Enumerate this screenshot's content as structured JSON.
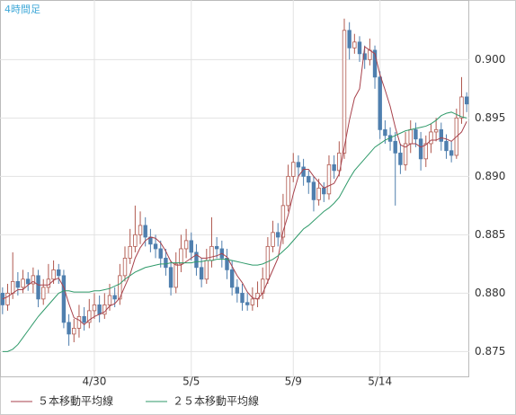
{
  "chart_data": {
    "type": "candlestick",
    "title": "4時間足",
    "categories": [
      null,
      null,
      null,
      null,
      null,
      null,
      null,
      null,
      null,
      null,
      null,
      null,
      null,
      null,
      null,
      null,
      null,
      null,
      "4/30",
      null,
      null,
      null,
      null,
      null,
      null,
      null,
      null,
      null,
      null,
      null,
      null,
      null,
      null,
      null,
      null,
      null,
      null,
      "5/5",
      null,
      null,
      null,
      null,
      null,
      null,
      null,
      null,
      null,
      null,
      null,
      null,
      null,
      null,
      null,
      null,
      null,
      null,
      null,
      "5/9",
      null,
      null,
      null,
      null,
      null,
      null,
      null,
      null,
      null,
      null,
      null,
      null,
      null,
      null,
      null,
      null,
      "5/14",
      null,
      null,
      null,
      null,
      null,
      null,
      null,
      null,
      null,
      null,
      null,
      null,
      null,
      null,
      null,
      null,
      null
    ],
    "open": [
      0.88,
      0.879,
      0.88,
      0.881,
      0.8805,
      0.8812,
      0.8808,
      0.8815,
      0.8795,
      0.8805,
      0.8812,
      0.882,
      0.8815,
      0.8775,
      0.8765,
      0.877,
      0.878,
      0.8775,
      0.8785,
      0.879,
      0.8782,
      0.879,
      0.8798,
      0.8795,
      0.8815,
      0.883,
      0.884,
      0.885,
      0.8858,
      0.8848,
      0.8842,
      0.8838,
      0.883,
      0.8822,
      0.8805,
      0.8825,
      0.8838,
      0.8845,
      0.8835,
      0.8822,
      0.8812,
      0.8828,
      0.884,
      0.8838,
      0.883,
      0.882,
      0.8805,
      0.88,
      0.8792,
      0.879,
      0.8795,
      0.88,
      0.8812,
      0.884,
      0.8852,
      0.8848,
      0.8875,
      0.89,
      0.8912,
      0.8908,
      0.89,
      0.8895,
      0.888,
      0.889,
      0.8885,
      0.891,
      0.8905,
      0.892,
      0.9025,
      0.901,
      0.9015,
      0.9005,
      0.9,
      0.9008,
      0.8985,
      0.894,
      0.8935,
      0.893,
      0.892,
      0.891,
      0.8928,
      0.894,
      0.8932,
      0.8915,
      0.8928,
      0.8938,
      0.894,
      0.893,
      0.8922,
      0.8918,
      0.895,
      0.8968
    ],
    "high": [
      0.8805,
      0.8808,
      0.8835,
      0.8818,
      0.882,
      0.8818,
      0.8822,
      0.882,
      0.8812,
      0.8825,
      0.8828,
      0.8825,
      0.882,
      0.8782,
      0.8778,
      0.879,
      0.8788,
      0.8795,
      0.88,
      0.8798,
      0.88,
      0.8808,
      0.8805,
      0.8825,
      0.884,
      0.8855,
      0.8875,
      0.887,
      0.8865,
      0.8855,
      0.885,
      0.8845,
      0.8838,
      0.8828,
      0.8835,
      0.885,
      0.8855,
      0.8852,
      0.8842,
      0.883,
      0.8838,
      0.8865,
      0.8848,
      0.8845,
      0.8838,
      0.8828,
      0.8812,
      0.8808,
      0.88,
      0.8805,
      0.881,
      0.8822,
      0.8848,
      0.8862,
      0.886,
      0.8885,
      0.891,
      0.892,
      0.8918,
      0.8915,
      0.8905,
      0.89,
      0.8898,
      0.8895,
      0.8918,
      0.8918,
      0.893,
      0.9035,
      0.9032,
      0.9022,
      0.902,
      0.9012,
      0.9018,
      0.9012,
      0.899,
      0.8948,
      0.8942,
      0.8938,
      0.8928,
      0.8938,
      0.8948,
      0.8946,
      0.8938,
      0.8935,
      0.8945,
      0.895,
      0.8946,
      0.8936,
      0.893,
      0.8958,
      0.8985,
      0.8972
    ],
    "low": [
      0.8782,
      0.8785,
      0.8795,
      0.8798,
      0.88,
      0.8802,
      0.88,
      0.8788,
      0.879,
      0.88,
      0.8808,
      0.8808,
      0.877,
      0.8755,
      0.8758,
      0.8762,
      0.8768,
      0.877,
      0.8778,
      0.8775,
      0.8778,
      0.8785,
      0.8788,
      0.879,
      0.881,
      0.8825,
      0.8835,
      0.8842,
      0.884,
      0.8835,
      0.883,
      0.8822,
      0.8815,
      0.8798,
      0.88,
      0.8818,
      0.883,
      0.8828,
      0.8815,
      0.8805,
      0.8808,
      0.8822,
      0.883,
      0.8822,
      0.8812,
      0.8798,
      0.8792,
      0.8785,
      0.8785,
      0.8785,
      0.8788,
      0.8795,
      0.8808,
      0.8835,
      0.884,
      0.8842,
      0.887,
      0.8895,
      0.89,
      0.8892,
      0.8885,
      0.887,
      0.8875,
      0.8878,
      0.888,
      0.8898,
      0.89,
      0.8915,
      0.9,
      0.9005,
      0.8998,
      0.8992,
      0.8995,
      0.8975,
      0.8932,
      0.8928,
      0.8922,
      0.8875,
      0.8902,
      0.8905,
      0.892,
      0.8925,
      0.8905,
      0.8908,
      0.892,
      0.893,
      0.8922,
      0.8915,
      0.8912,
      0.8915,
      0.8945,
      0.8955
    ],
    "close": [
      0.879,
      0.88,
      0.881,
      0.8805,
      0.8812,
      0.8808,
      0.8815,
      0.8795,
      0.8805,
      0.8812,
      0.882,
      0.8815,
      0.8775,
      0.8765,
      0.877,
      0.878,
      0.8775,
      0.8785,
      0.879,
      0.8782,
      0.879,
      0.8798,
      0.8795,
      0.8815,
      0.883,
      0.884,
      0.885,
      0.8858,
      0.8848,
      0.8842,
      0.8838,
      0.883,
      0.8822,
      0.8805,
      0.8825,
      0.8838,
      0.8845,
      0.8835,
      0.8822,
      0.8812,
      0.8828,
      0.884,
      0.8838,
      0.883,
      0.882,
      0.8805,
      0.88,
      0.8792,
      0.879,
      0.8795,
      0.88,
      0.8812,
      0.884,
      0.8852,
      0.8848,
      0.8875,
      0.89,
      0.8912,
      0.8908,
      0.89,
      0.8895,
      0.888,
      0.889,
      0.8885,
      0.891,
      0.8905,
      0.892,
      0.9025,
      0.901,
      0.9015,
      0.9005,
      0.9,
      0.9008,
      0.8985,
      0.894,
      0.8935,
      0.893,
      0.892,
      0.891,
      0.8928,
      0.894,
      0.8932,
      0.8915,
      0.8928,
      0.8938,
      0.894,
      0.893,
      0.8922,
      0.8918,
      0.895,
      0.8968,
      0.8962
    ],
    "up_color": "#b0584e",
    "down_color": "#4f7fae",
    "series": [
      {
        "name": "５本移動平均線",
        "color": "#a8424c",
        "values": [
          0.8795,
          0.8797,
          0.88,
          0.8803,
          0.8803,
          0.8807,
          0.881,
          0.8807,
          0.8807,
          0.8807,
          0.8811,
          0.8813,
          0.8805,
          0.8791,
          0.8779,
          0.8777,
          0.8773,
          0.8777,
          0.878,
          0.8782,
          0.8784,
          0.8789,
          0.8791,
          0.8796,
          0.8806,
          0.8816,
          0.883,
          0.8839,
          0.8845,
          0.8848,
          0.8847,
          0.8843,
          0.8836,
          0.8827,
          0.8824,
          0.8824,
          0.8827,
          0.883,
          0.8833,
          0.883,
          0.883,
          0.8831,
          0.8832,
          0.8834,
          0.8831,
          0.8823,
          0.8815,
          0.8809,
          0.8801,
          0.8796,
          0.8795,
          0.88,
          0.881,
          0.882,
          0.883,
          0.8853,
          0.8867,
          0.8885,
          0.89,
          0.8906,
          0.8906,
          0.89,
          0.8895,
          0.889,
          0.8892,
          0.8894,
          0.8902,
          0.8925,
          0.8948,
          0.8967,
          0.8975,
          0.9011,
          0.9008,
          0.9005,
          0.8987,
          0.8974,
          0.896,
          0.8942,
          0.8927,
          0.8925,
          0.8928,
          0.8928,
          0.8925,
          0.8927,
          0.8931,
          0.8931,
          0.8933,
          0.8932,
          0.893,
          0.8934,
          0.8938,
          0.8947
        ]
      },
      {
        "name": "２５本移動平均線",
        "color": "#2f9a6a",
        "values": [
          0.875,
          0.875,
          0.8752,
          0.8756,
          0.8762,
          0.8768,
          0.8774,
          0.878,
          0.8785,
          0.879,
          0.8795,
          0.88,
          0.8802,
          0.8802,
          0.8801,
          0.8801,
          0.8801,
          0.8801,
          0.8802,
          0.8802,
          0.8803,
          0.8804,
          0.8806,
          0.8808,
          0.8812,
          0.8815,
          0.8818,
          0.882,
          0.8822,
          0.8823,
          0.8824,
          0.8825,
          0.8825,
          0.8826,
          0.8826,
          0.8826,
          0.8826,
          0.8826,
          0.8827,
          0.8827,
          0.8828,
          0.8828,
          0.8829,
          0.8829,
          0.8829,
          0.8828,
          0.8827,
          0.8826,
          0.8825,
          0.8824,
          0.8824,
          0.8825,
          0.8827,
          0.8829,
          0.8832,
          0.8836,
          0.884,
          0.8845,
          0.885,
          0.8855,
          0.8858,
          0.8862,
          0.8866,
          0.887,
          0.8873,
          0.8877,
          0.8882,
          0.889,
          0.8898,
          0.8905,
          0.891,
          0.8915,
          0.892,
          0.8925,
          0.8928,
          0.8931,
          0.8933,
          0.8935,
          0.8937,
          0.8939,
          0.894,
          0.8941,
          0.8942,
          0.8943,
          0.8945,
          0.8948,
          0.8952,
          0.8954,
          0.8955,
          0.8953,
          0.8951,
          0.895
        ]
      }
    ],
    "ylim": [
      0.8728,
      0.9051
    ],
    "yticks": [
      0.875,
      {
        "value": 0.88,
        "label": "0.880"
      },
      0.885,
      {
        "value": 0.89,
        "label": "0.890"
      },
      0.895,
      {
        "value": 0.9,
        "label": "0.900"
      }
    ],
    "grid": true
  }
}
